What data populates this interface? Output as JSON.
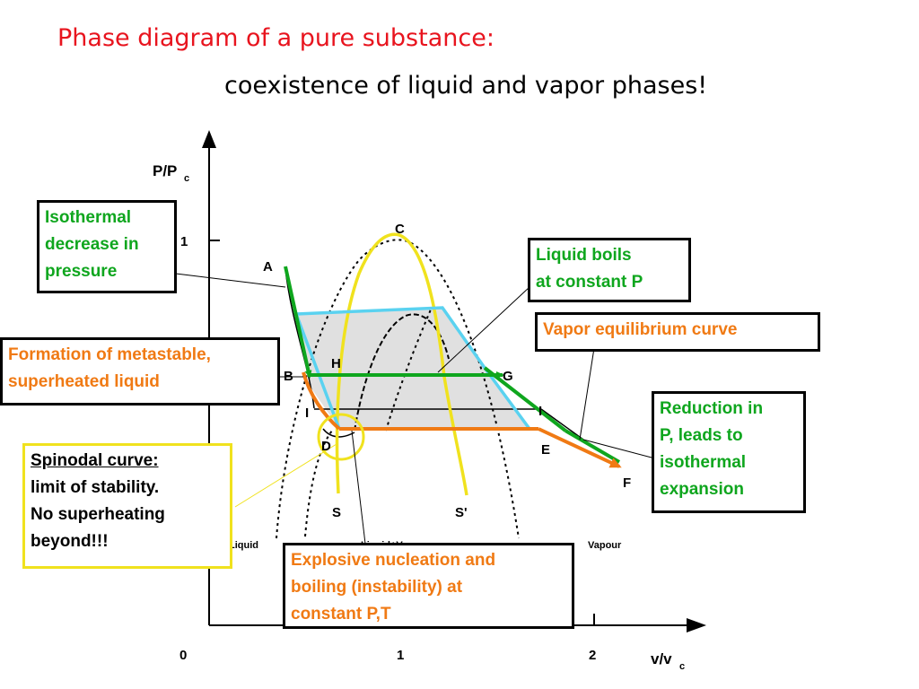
{
  "title": "Phase diagram of a pure substance:",
  "subtitle": "coexistence of liquid and vapor phases!",
  "axes": {
    "y_label": "P/P",
    "y_sub": "c",
    "x_label": "v/v",
    "x_sub": "c",
    "y_ticks": [
      "1"
    ],
    "x_ticks": [
      "0",
      "1",
      "2"
    ]
  },
  "points": {
    "A": "A",
    "B": "B",
    "C": "C",
    "D": "D",
    "E": "E",
    "F": "F",
    "G": "G",
    "H": "H",
    "I_left": "I",
    "I_right": "I",
    "S": "S",
    "S_prime": "S'"
  },
  "regions": {
    "liquid": "Liquid",
    "liquid_vapour": "Liquid+Vapour",
    "vapour": "Vapour"
  },
  "annotations": {
    "isothermal": [
      "Isothermal",
      "decrease in",
      "pressure"
    ],
    "liquid_boils": [
      "Liquid boils",
      "at constant P"
    ],
    "vapor_curve": [
      "Vapor equilibrium curve"
    ],
    "metastable": [
      "Formation of metastable,",
      "superheated liquid"
    ],
    "reduction": [
      "Reduction in",
      "P, leads to",
      "isothermal",
      "expansion"
    ],
    "spinodal_title": "Spinodal curve:",
    "spinodal": [
      "limit of stability.",
      "No superheating",
      "beyond!!!"
    ],
    "explosive": [
      "Explosive nucleation and",
      "boiling (instability) at",
      "constant P,T"
    ]
  },
  "colors": {
    "title_red": "#e8141e",
    "green": "#0fa61e",
    "orange": "#f07a14",
    "yellow": "#f0e21e",
    "cyan": "#5ad2f0",
    "shade": "#e0e0e0"
  }
}
